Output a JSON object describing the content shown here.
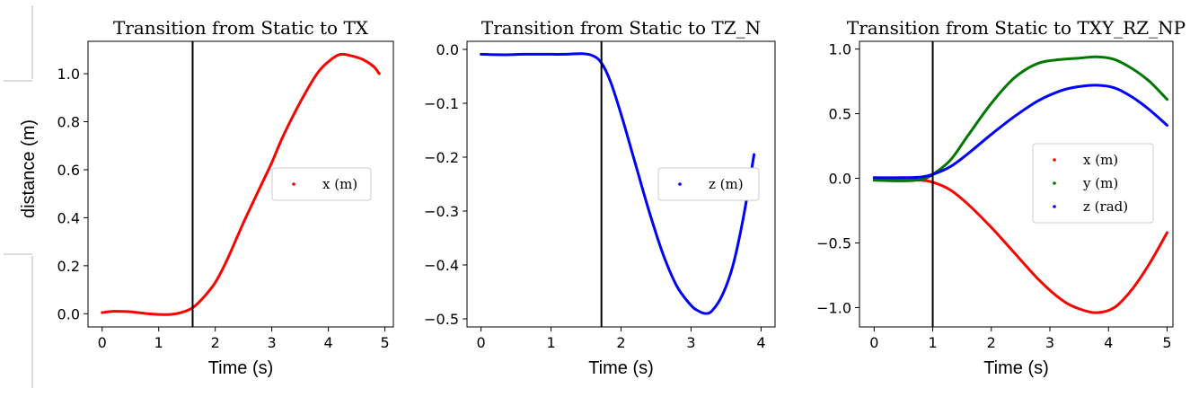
{
  "figure": {
    "ylabel": "distance (m)"
  },
  "chart_data": [
    {
      "type": "line",
      "title": "Transition from Static to TX",
      "xlabel": "Time (s)",
      "ylabel": "",
      "xlim": [
        -0.25,
        5.15
      ],
      "ylim": [
        -0.055,
        1.135
      ],
      "xticks": [
        0,
        1,
        2,
        3,
        4,
        5
      ],
      "yticks": [
        0.0,
        0.2,
        0.4,
        0.6,
        0.8,
        1.0
      ],
      "ytick_labels": [
        "0.0",
        "0.2",
        "0.4",
        "0.6",
        "0.8",
        "1.0"
      ],
      "vline": 1.6,
      "legend": {
        "placement": "center-right"
      },
      "series": [
        {
          "name": "x (m)",
          "color": "#ff0000",
          "x": [
            0,
            0.2,
            0.5,
            0.8,
            1.0,
            1.2,
            1.4,
            1.6,
            1.8,
            2.0,
            2.2,
            2.5,
            2.8,
            3.0,
            3.2,
            3.5,
            3.8,
            4.0,
            4.2,
            4.4,
            4.6,
            4.8,
            4.9
          ],
          "y": [
            0.005,
            0.01,
            0.008,
            0.0,
            -0.003,
            -0.003,
            0.005,
            0.025,
            0.07,
            0.13,
            0.22,
            0.38,
            0.53,
            0.63,
            0.74,
            0.88,
            1.0,
            1.05,
            1.08,
            1.075,
            1.06,
            1.03,
            1.0
          ]
        }
      ]
    },
    {
      "type": "line",
      "title": "Transition from Static to TZ_N",
      "xlabel": "Time (s)",
      "ylabel": "",
      "xlim": [
        -0.2,
        4.2
      ],
      "ylim": [
        -0.515,
        0.015
      ],
      "xticks": [
        0,
        1,
        2,
        3,
        4
      ],
      "yticks": [
        0.0,
        -0.1,
        -0.2,
        -0.3,
        -0.4,
        -0.5
      ],
      "ytick_labels": [
        "0.0",
        "−0.1",
        "−0.2",
        "−0.3",
        "−0.4",
        "−0.5"
      ],
      "vline": 1.72,
      "legend": {
        "placement": "center-right"
      },
      "series": [
        {
          "name": "z (m)",
          "color": "#0000ff",
          "x": [
            0,
            0.3,
            0.6,
            0.9,
            1.2,
            1.45,
            1.6,
            1.72,
            1.85,
            2.0,
            2.2,
            2.4,
            2.6,
            2.8,
            3.0,
            3.1,
            3.2,
            3.3,
            3.45,
            3.6,
            3.75,
            3.9
          ],
          "y": [
            -0.009,
            -0.01,
            -0.009,
            -0.009,
            -0.009,
            -0.008,
            -0.012,
            -0.025,
            -0.06,
            -0.12,
            -0.21,
            -0.3,
            -0.38,
            -0.44,
            -0.475,
            -0.485,
            -0.49,
            -0.485,
            -0.455,
            -0.4,
            -0.31,
            -0.195
          ]
        }
      ]
    },
    {
      "type": "line",
      "title": "Transition from Static to TXY_RZ_NP",
      "xlabel": "Time (s)",
      "ylabel": "",
      "xlim": [
        -0.25,
        5.1
      ],
      "ylim": [
        -1.15,
        1.06
      ],
      "xticks": [
        0,
        1,
        2,
        3,
        4,
        5
      ],
      "yticks": [
        1.0,
        0.5,
        0.0,
        -0.5,
        -1.0
      ],
      "ytick_labels": [
        "1.0",
        "0.5",
        "0.0",
        "−0.5",
        "−1.0"
      ],
      "vline": 1.0,
      "legend": {
        "placement": "center-right"
      },
      "series": [
        {
          "name": "x (m)",
          "color": "#ff0000",
          "x": [
            0,
            0.5,
            0.8,
            1.0,
            1.3,
            1.6,
            2.0,
            2.4,
            2.8,
            3.2,
            3.5,
            3.8,
            4.1,
            4.4,
            4.7,
            5.0
          ],
          "y": [
            -0.005,
            -0.01,
            -0.015,
            -0.03,
            -0.09,
            -0.2,
            -0.38,
            -0.58,
            -0.78,
            -0.94,
            -1.01,
            -1.04,
            -1.0,
            -0.86,
            -0.66,
            -0.42
          ]
        },
        {
          "name": "y (m)",
          "color": "#007700",
          "x": [
            0,
            0.5,
            0.8,
            1.0,
            1.3,
            1.6,
            2.0,
            2.4,
            2.8,
            3.2,
            3.5,
            3.8,
            4.1,
            4.4,
            4.7,
            5.0
          ],
          "y": [
            -0.015,
            -0.02,
            -0.01,
            0.03,
            0.14,
            0.33,
            0.58,
            0.78,
            0.89,
            0.92,
            0.93,
            0.94,
            0.92,
            0.85,
            0.75,
            0.61
          ]
        },
        {
          "name": "z (rad)",
          "color": "#0000ff",
          "x": [
            0,
            0.5,
            0.8,
            1.0,
            1.3,
            1.6,
            2.0,
            2.4,
            2.8,
            3.2,
            3.5,
            3.8,
            4.1,
            4.4,
            4.7,
            5.0
          ],
          "y": [
            0.005,
            0.005,
            0.01,
            0.03,
            0.09,
            0.19,
            0.34,
            0.48,
            0.6,
            0.68,
            0.71,
            0.72,
            0.7,
            0.63,
            0.53,
            0.41
          ]
        }
      ]
    }
  ]
}
